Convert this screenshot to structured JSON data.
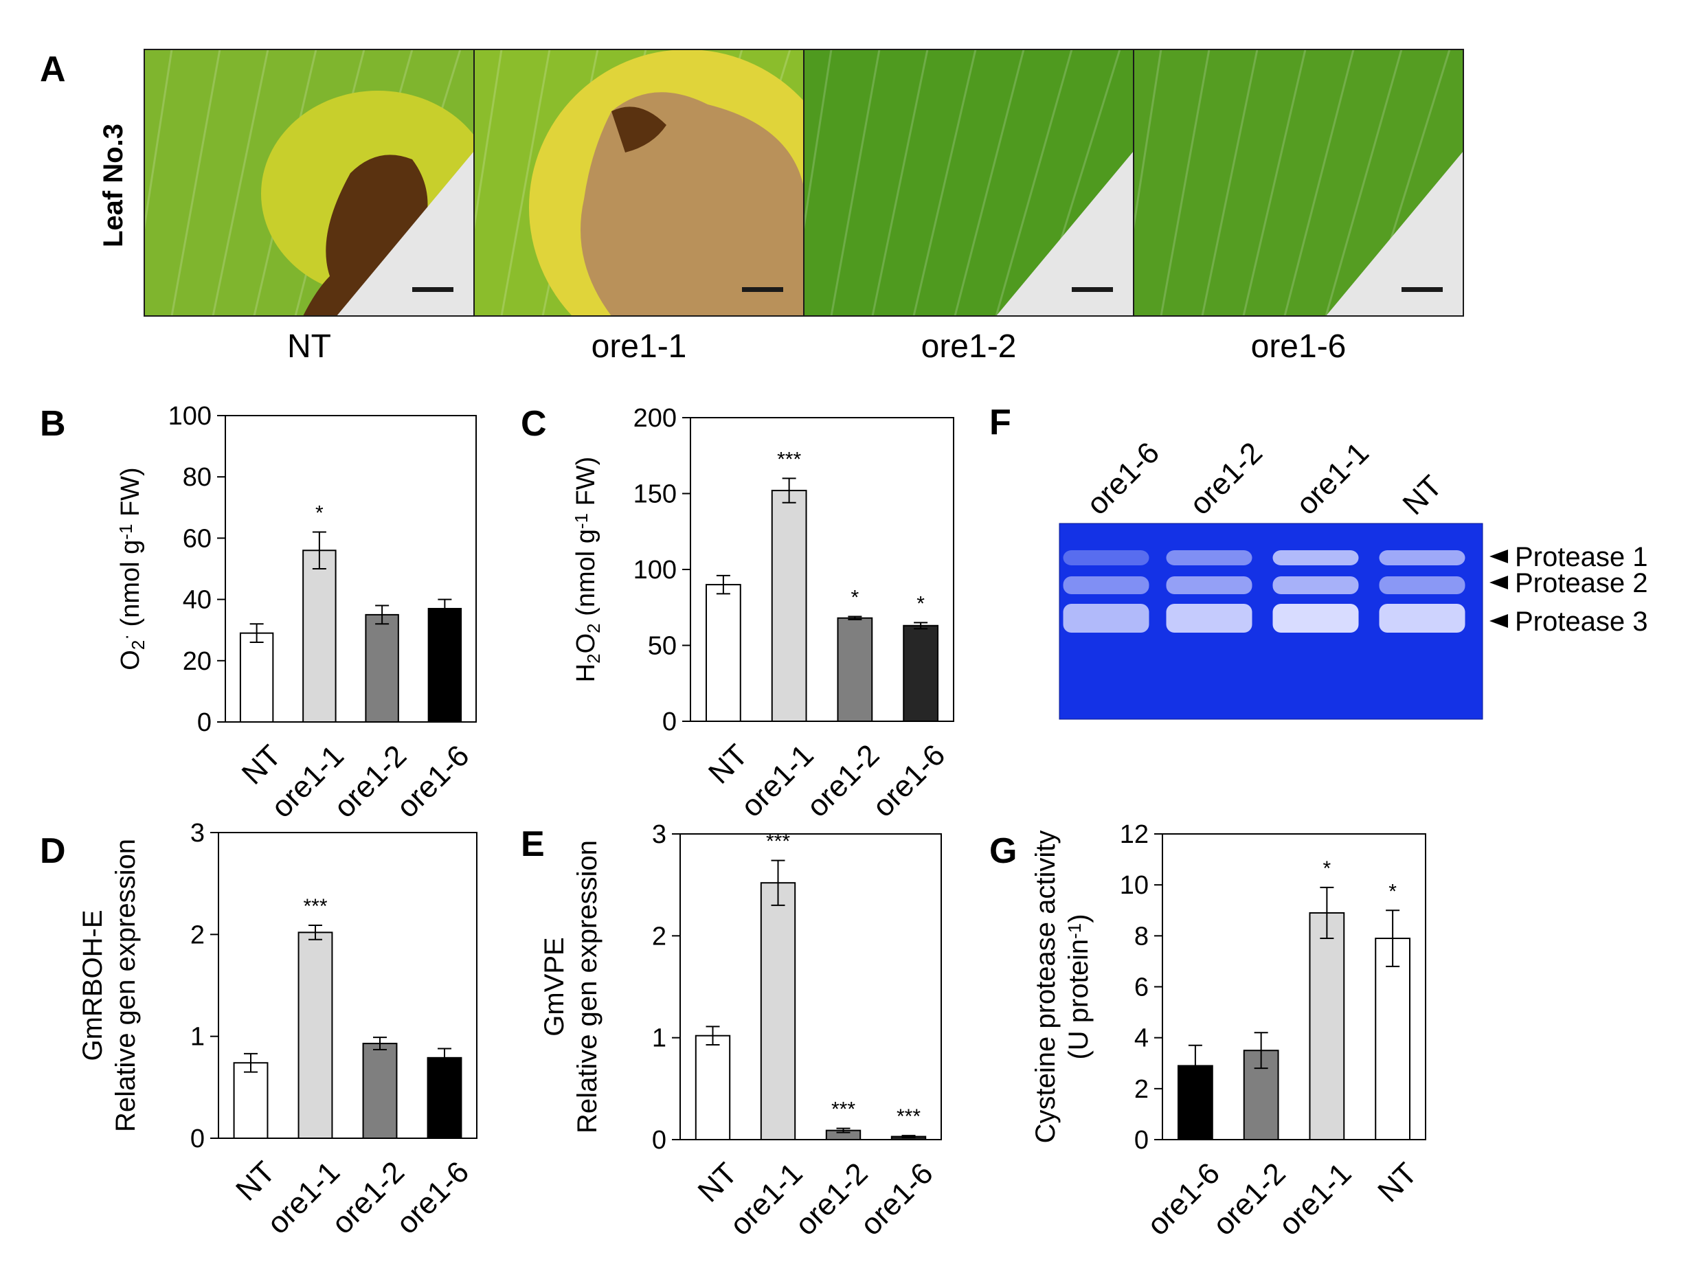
{
  "panels": {
    "A": {
      "letter": "A",
      "row_label": "Leaf No.3",
      "photos": [
        {
          "label": "NT",
          "palette": {
            "base": "#7fb52e",
            "edge": "#c8cf2c",
            "lesion": "#5a3210",
            "corner": "#e6e6e6"
          }
        },
        {
          "label": "ore1-1",
          "palette": {
            "base": "#8bbd2c",
            "edge": "#e0d43a",
            "lesion": "#b9915a",
            "corner": "#e6e6e6"
          }
        },
        {
          "label": "ore1-2",
          "palette": {
            "base": "#4f9a1f",
            "edge": "#5ea625",
            "lesion": "#4f9a1f",
            "corner": "#e6e6e6"
          }
        },
        {
          "label": "ore1-6",
          "palette": {
            "base": "#559d22",
            "edge": "#62a82a",
            "lesion": "#559d22",
            "corner": "#e6e6e6"
          }
        }
      ]
    },
    "F": {
      "letter": "F",
      "lanes": [
        "ore1-6",
        "ore1-2",
        "ore1-1",
        "NT"
      ],
      "bands": [
        "Protease 1",
        "Protease 2",
        "Protease 3"
      ],
      "gel_color": "#1432e6",
      "band_color": "#d8dcff"
    }
  },
  "chart_data": [
    {
      "id": "B",
      "letter": "B",
      "type": "bar",
      "categories": [
        "NT",
        "ore1-1",
        "ore1-2",
        "ore1-6"
      ],
      "values": [
        29,
        56,
        35,
        37
      ],
      "errors": [
        3,
        6,
        3,
        3
      ],
      "significance": [
        "",
        "*",
        "",
        ""
      ],
      "colors": [
        "#ffffff",
        "#d9d9d9",
        "#7f7f7f",
        "#000000"
      ],
      "ylabel_parts": [
        "O",
        "2",
        "·",
        " (nmol  g",
        "-1",
        " FW)"
      ],
      "ylim": [
        0,
        100
      ],
      "yticks": [
        0,
        20,
        40,
        60,
        80,
        100
      ]
    },
    {
      "id": "C",
      "letter": "C",
      "type": "bar",
      "categories": [
        "NT",
        "ore1-1",
        "ore1-2",
        "ore1-6"
      ],
      "values": [
        90,
        152,
        68,
        63
      ],
      "errors": [
        6,
        8,
        1,
        2
      ],
      "significance": [
        "",
        "***",
        "*",
        "*"
      ],
      "colors": [
        "#ffffff",
        "#d9d9d9",
        "#7f7f7f",
        "#262626"
      ],
      "ylabel_parts": [
        "H",
        "2",
        "O",
        "2",
        " (nmol  g",
        "-1",
        " FW)"
      ],
      "ylim": [
        0,
        200
      ],
      "yticks": [
        0,
        50,
        100,
        150,
        200
      ]
    },
    {
      "id": "D",
      "letter": "D",
      "type": "bar",
      "categories": [
        "NT",
        "ore1-1",
        "ore1-2",
        "ore1-6"
      ],
      "values": [
        0.74,
        2.02,
        0.93,
        0.79
      ],
      "errors": [
        0.09,
        0.07,
        0.06,
        0.09
      ],
      "significance": [
        "",
        "***",
        "",
        ""
      ],
      "colors": [
        "#ffffff",
        "#d9d9d9",
        "#7f7f7f",
        "#000000"
      ],
      "ylabel_lines": [
        "GmRBOH-E",
        "Relative gen expression"
      ],
      "ylim": [
        0,
        3
      ],
      "yticks": [
        0,
        1,
        2,
        3
      ]
    },
    {
      "id": "E",
      "letter": "E",
      "type": "bar",
      "categories": [
        "NT",
        "ore1-1",
        "ore1-2",
        "ore1-6"
      ],
      "values": [
        1.02,
        2.52,
        0.09,
        0.03
      ],
      "errors": [
        0.09,
        0.22,
        0.02,
        0.01
      ],
      "significance": [
        "",
        "***",
        "***",
        "***"
      ],
      "colors": [
        "#ffffff",
        "#d9d9d9",
        "#7f7f7f",
        "#262626"
      ],
      "ylabel_lines": [
        "GmVPE",
        "Relative gen expression"
      ],
      "ylim": [
        0,
        3
      ],
      "yticks": [
        0,
        1,
        2,
        3
      ]
    },
    {
      "id": "G",
      "letter": "G",
      "type": "bar",
      "categories": [
        "ore1-6",
        "ore1-2",
        "ore1-1",
        "NT"
      ],
      "values": [
        2.9,
        3.5,
        8.9,
        7.9
      ],
      "errors": [
        0.8,
        0.7,
        1.0,
        1.1
      ],
      "significance": [
        "",
        "",
        "*",
        "*"
      ],
      "colors": [
        "#000000",
        "#7f7f7f",
        "#d9d9d9",
        "#ffffff"
      ],
      "ylabel_lines": [
        "Cysteine protease activity",
        "(U protein-1)"
      ],
      "ylim": [
        0,
        12
      ],
      "yticks": [
        0,
        2,
        4,
        6,
        8,
        10,
        12
      ]
    }
  ]
}
